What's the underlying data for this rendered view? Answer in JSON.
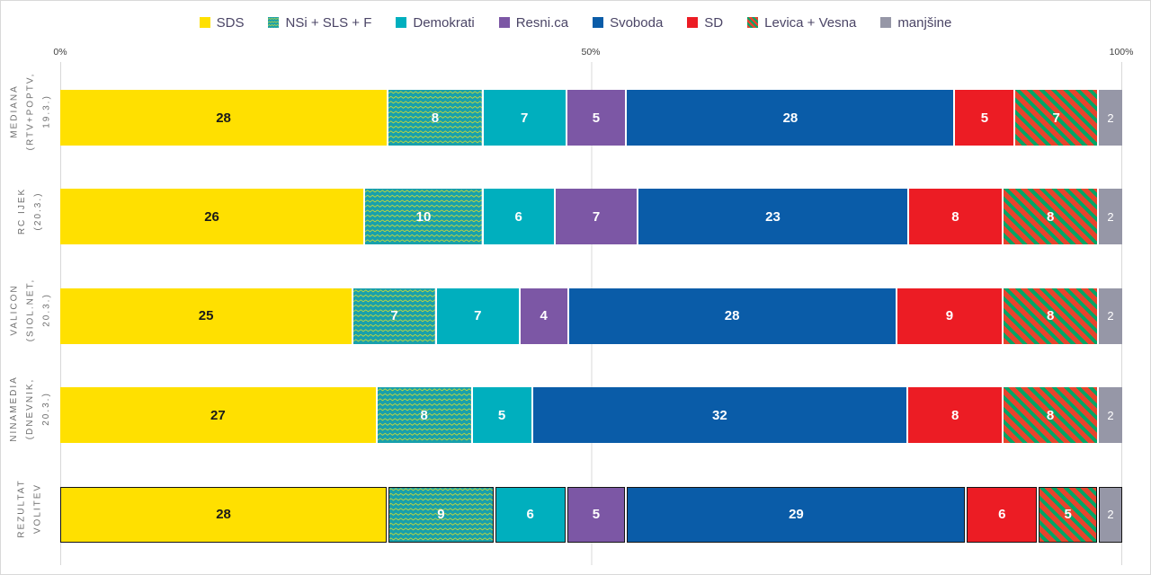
{
  "ticks": {
    "t0": "0%",
    "t50": "50%",
    "t100": "100%"
  },
  "parties": [
    {
      "name": "SDS",
      "color": "#FFE000",
      "pattern": "solid",
      "value_color": "#1a1a1a"
    },
    {
      "name": "NSi + SLS + F",
      "color": "#18A0AC",
      "pattern": "zigzag",
      "pattern_color": "#C2D63A",
      "value_color": "#ffffff"
    },
    {
      "name": "Demokrati",
      "color": "#00AFBE",
      "pattern": "solid",
      "value_color": "#ffffff"
    },
    {
      "name": "Resni.ca",
      "color": "#7C57A5",
      "pattern": "solid",
      "value_color": "#ffffff"
    },
    {
      "name": "Svoboda",
      "color": "#0A5CA8",
      "pattern": "solid",
      "value_color": "#ffffff"
    },
    {
      "name": "SD",
      "color": "#EC1C24",
      "pattern": "solid",
      "value_color": "#ffffff"
    },
    {
      "name": "Levica + Vesna",
      "color": "#E8432D",
      "pattern": "stripes",
      "pattern_color": "#00A566",
      "value_color": "#ffffff"
    },
    {
      "name": "manjšine",
      "color": "#9697A7",
      "pattern": "solid",
      "value_color": "#ffffff",
      "small": true
    }
  ],
  "chart_data": {
    "type": "bar",
    "variant": "horizontal-100pct-stacked",
    "total_per_row": 90,
    "x_ticks": [
      "0%",
      "50%",
      "100%"
    ],
    "xlim": [
      0,
      100
    ],
    "grid": "vertical-at-0-50-100",
    "legend_position": "top-center",
    "categories": [
      "MEDIANA (RTV+POPTV, 19.3.)",
      "RC IJEK (20.3.)",
      "VALICON (SIOL.NET, 20.3.)",
      "NINAMEDIA (DNEVNIK, 20.3.)",
      "REZULTAT VOLITEV"
    ],
    "series_order": [
      "SDS",
      "NSi + SLS + F",
      "Demokrati",
      "Resni.ca",
      "Svoboda",
      "SD",
      "Levica + Vesna",
      "manjšine"
    ],
    "rows": [
      {
        "label": "MEDIANA (RTV+POPTV, 19.3.)",
        "label_lines": [
          "MEDIANA",
          "(RTV+POPTV,",
          "19.3.)"
        ],
        "values": [
          28,
          8,
          7,
          5,
          28,
          5,
          7,
          2
        ],
        "result": false
      },
      {
        "label": "RC IJEK (20.3.)",
        "label_lines": [
          "RC IJEK",
          "(20.3.)"
        ],
        "values": [
          26,
          10,
          6,
          7,
          23,
          8,
          8,
          2
        ],
        "result": false
      },
      {
        "label": "VALICON (SIOL.NET, 20.3.)",
        "label_lines": [
          "VALICON",
          "(SIOL.NET,",
          "20.3.)"
        ],
        "values": [
          25,
          7,
          7,
          4,
          28,
          9,
          8,
          2
        ],
        "result": false
      },
      {
        "label": "NINAMEDIA (DNEVNIK, 20.3.)",
        "label_lines": [
          "NINAMEDIA",
          "(DNEVNIK,",
          "20.3.)"
        ],
        "values": [
          27,
          8,
          5,
          0,
          32,
          8,
          8,
          2
        ],
        "result": false
      },
      {
        "label": "REZULTAT VOLITEV",
        "label_lines": [
          "REZULTAT",
          "VOLITEV"
        ],
        "values": [
          28,
          9,
          6,
          5,
          29,
          6,
          5,
          2
        ],
        "result": true
      }
    ]
  }
}
